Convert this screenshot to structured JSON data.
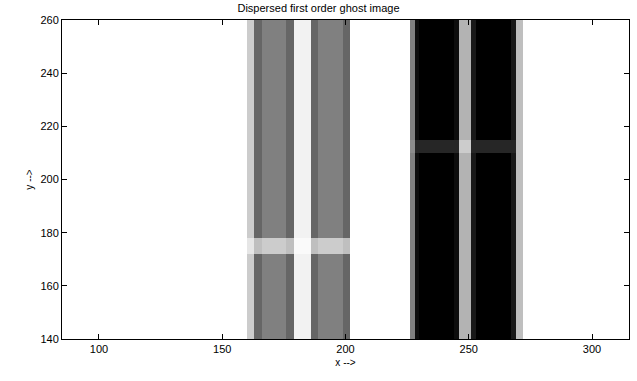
{
  "chart_data": {
    "type": "heatmap",
    "title": "Dispersed first order ghost image",
    "xlabel": "x -->",
    "ylabel": "y -->",
    "x_edges": [
      85,
      160,
      163,
      166,
      176,
      179,
      186,
      189,
      199,
      202,
      226,
      228,
      230,
      244,
      246,
      251,
      253,
      267,
      269,
      272,
      315
    ],
    "y_edges": [
      140,
      172,
      178,
      210,
      215,
      260
    ],
    "z": [
      [
        0,
        0.2,
        0.6,
        0.5,
        0.6,
        0.05,
        0.6,
        0.5,
        0.6,
        0,
        0.5,
        0.95,
        1,
        0.95,
        0.3,
        0.9,
        1,
        0.9,
        0.25,
        0
      ],
      [
        0,
        0.1,
        0.25,
        0.2,
        0.25,
        0.02,
        0.25,
        0.2,
        0.25,
        0,
        0.5,
        0.95,
        1,
        0.95,
        0.3,
        0.9,
        1,
        0.9,
        0.25,
        0
      ],
      [
        0,
        0.2,
        0.6,
        0.5,
        0.6,
        0.05,
        0.6,
        0.5,
        0.6,
        0,
        0.5,
        0.95,
        1,
        0.95,
        0.3,
        0.9,
        1,
        0.9,
        0.25,
        0
      ],
      [
        0,
        0.2,
        0.6,
        0.5,
        0.6,
        0.05,
        0.6,
        0.5,
        0.6,
        0,
        0.45,
        0.85,
        0.85,
        0.85,
        0.2,
        0.85,
        0.85,
        0.85,
        0.25,
        0
      ],
      [
        0,
        0.2,
        0.6,
        0.5,
        0.6,
        0.05,
        0.6,
        0.5,
        0.6,
        0,
        0.5,
        0.95,
        1,
        0.95,
        0.3,
        0.9,
        1,
        0.9,
        0.25,
        0
      ]
    ],
    "zlim": [
      0,
      1
    ],
    "xlim": [
      85,
      315
    ],
    "xticks": [
      100,
      150,
      200,
      250,
      300
    ],
    "ylim": [
      140,
      260
    ],
    "yticks": [
      140,
      160,
      180,
      200,
      220,
      240,
      260
    ],
    "grid": false
  }
}
